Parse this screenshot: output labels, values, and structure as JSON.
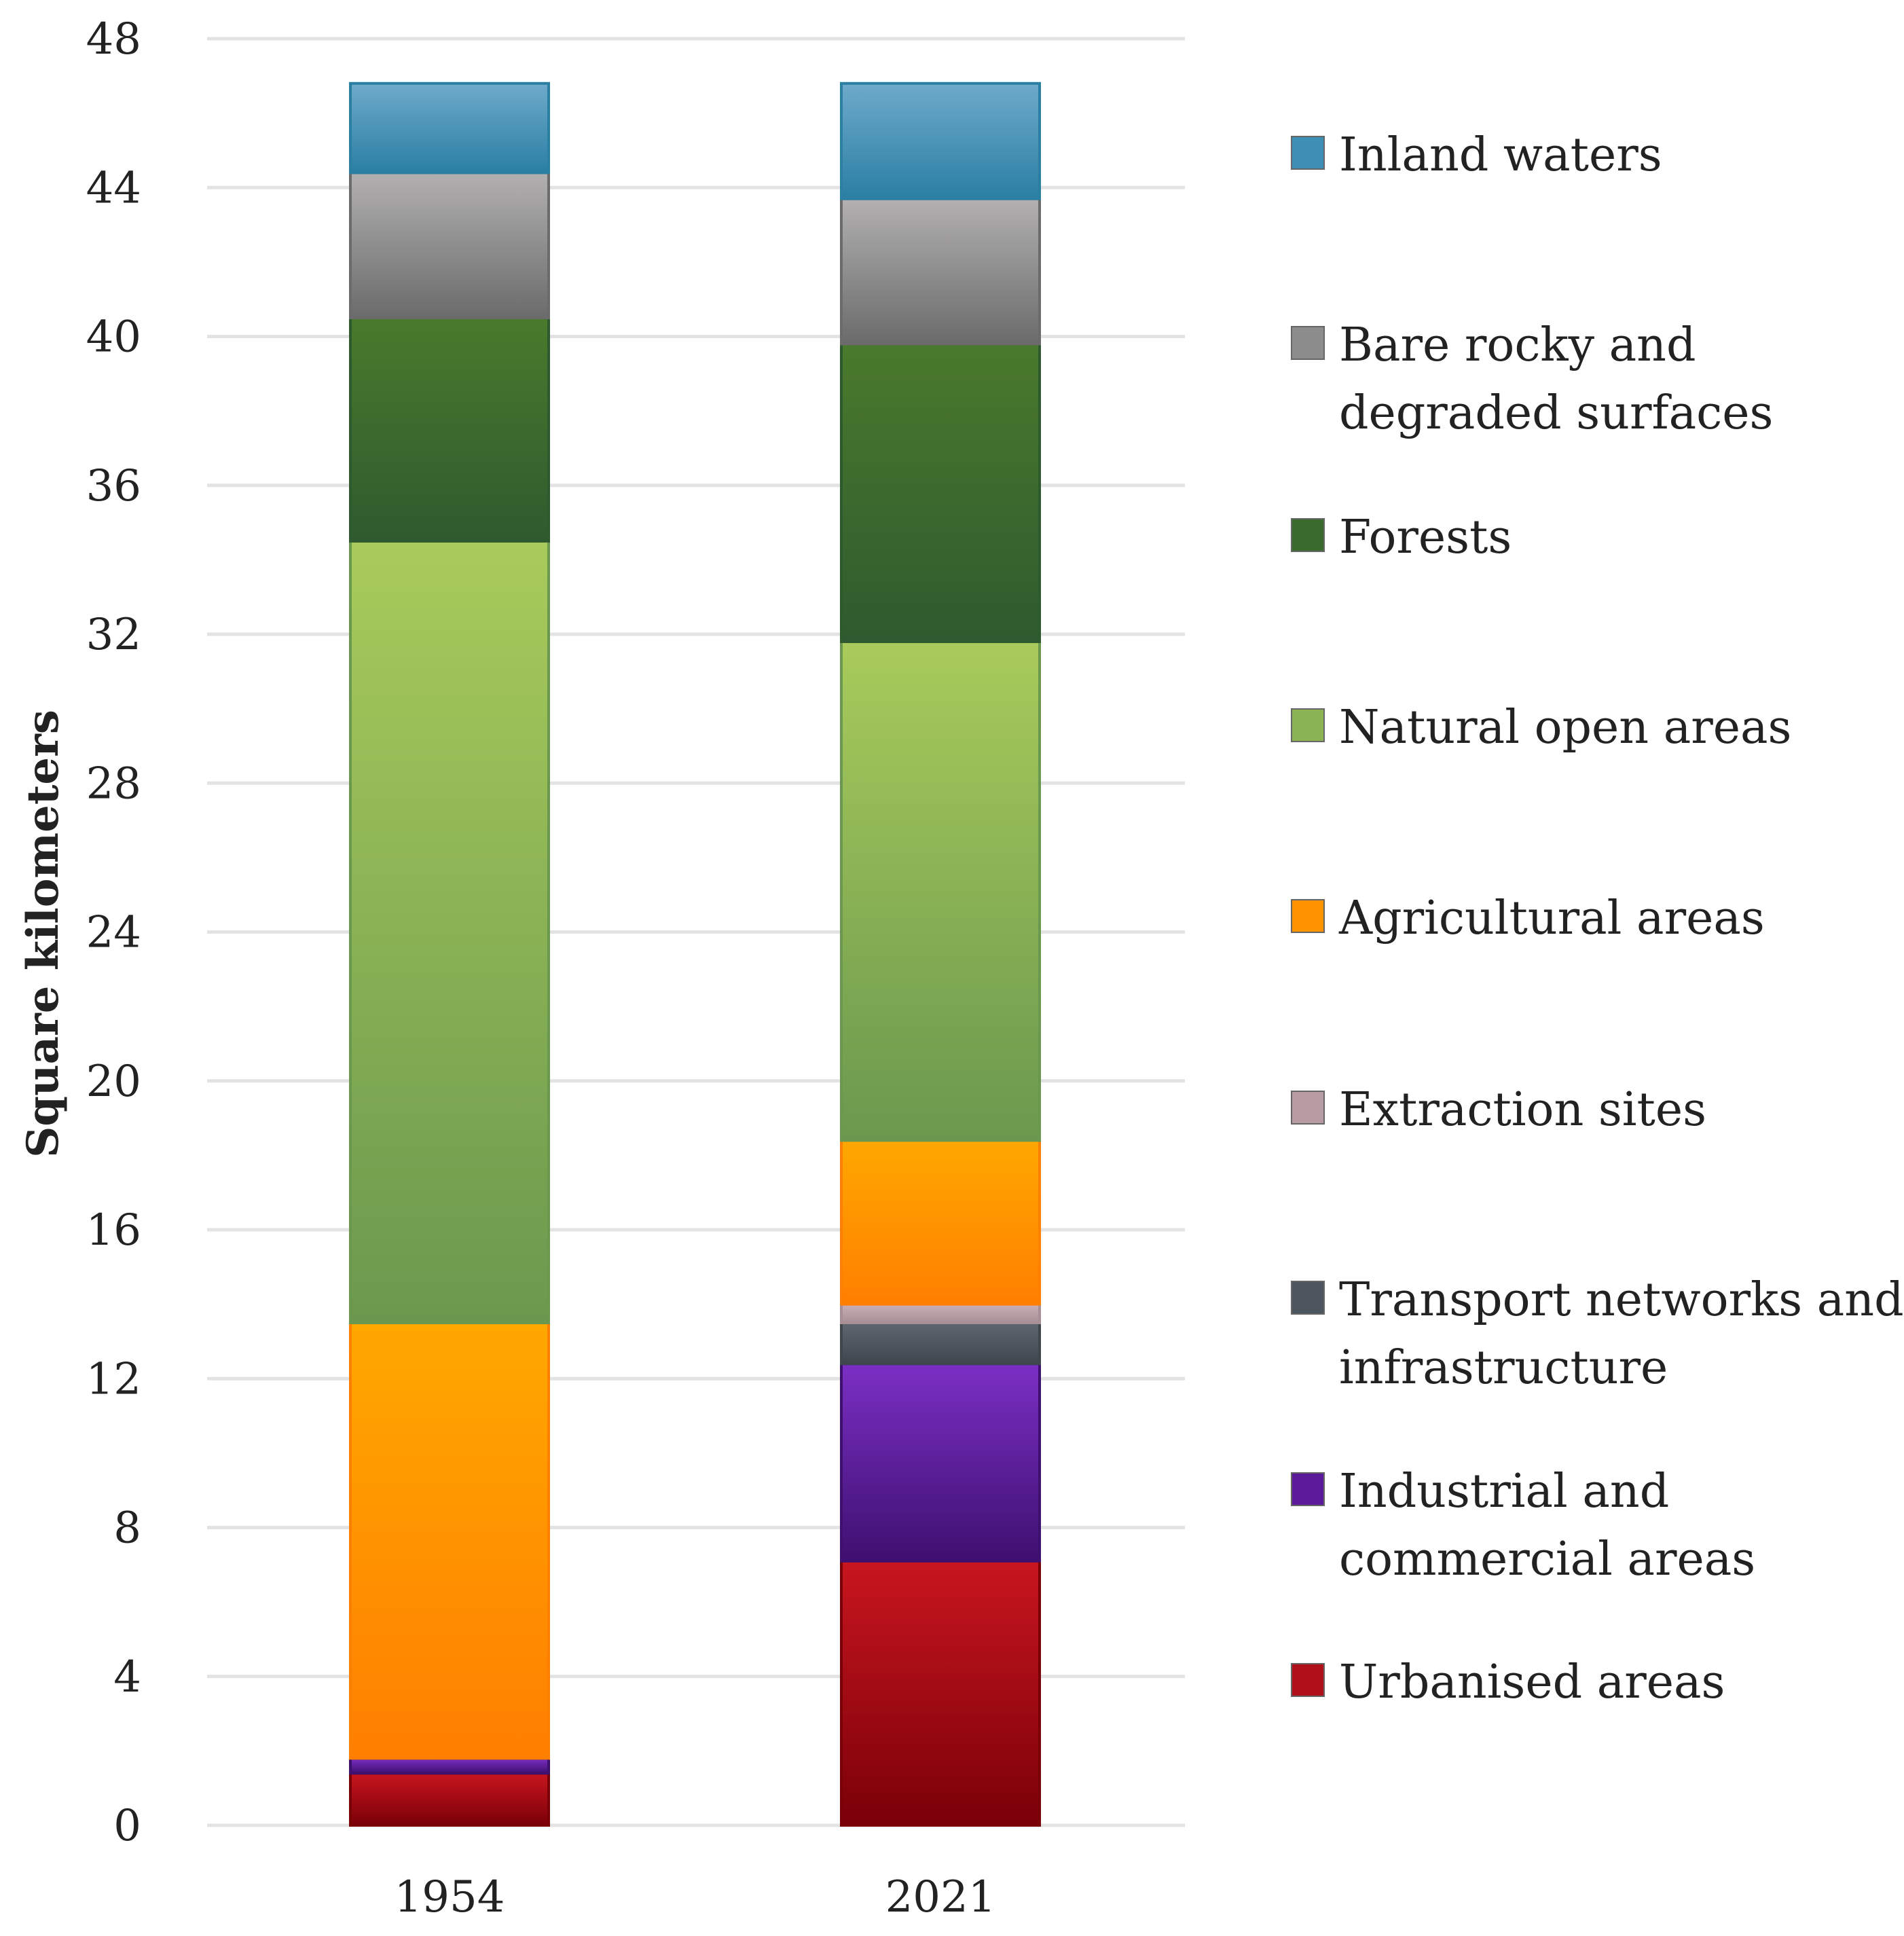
{
  "chart_data": {
    "type": "bar",
    "stacked": true,
    "title": "",
    "xlabel": "",
    "ylabel": "Square kilometers",
    "ylim": [
      0,
      48
    ],
    "yticks": [
      0,
      4,
      8,
      12,
      16,
      20,
      24,
      28,
      32,
      36,
      40,
      44,
      48
    ],
    "categories": [
      "1954",
      "2021"
    ],
    "grid": true,
    "legend_position": "right",
    "series": [
      {
        "name": "Urbanised areas",
        "values": [
          1.4,
          7.1
        ],
        "color_top": "#c8161f",
        "color_bottom": "#7a0008",
        "legend_color": "#b0101a"
      },
      {
        "name": "Industrial and commercial areas",
        "values": [
          0.4,
          5.3
        ],
        "color_top": "#7b2fc4",
        "color_bottom": "#3e1070",
        "legend_color": "#5a1a9a"
      },
      {
        "name": "Transport networks and infrastructure",
        "values": [
          0.0,
          1.1
        ],
        "color_top": "#5e6670",
        "color_bottom": "#3f464e",
        "legend_color": "#4d555e"
      },
      {
        "name": "Extraction sites",
        "values": [
          0.0,
          0.5
        ],
        "color_top": "#c9b0b6",
        "color_bottom": "#a88e95",
        "legend_color": "#b89ca3"
      },
      {
        "name": "Agricultural areas",
        "values": [
          11.7,
          4.4
        ],
        "color_top": "#ffa800",
        "color_bottom": "#ff7f00",
        "legend_color": "#ff9400"
      },
      {
        "name": "Natural open areas",
        "values": [
          21.0,
          13.4
        ],
        "color_top": "#a9cb5b",
        "color_bottom": "#6a984e",
        "legend_color": "#8ab454"
      },
      {
        "name": "Forests",
        "values": [
          6.0,
          8.0
        ],
        "color_top": "#4a7a2c",
        "color_bottom": "#2f5a2f",
        "legend_color": "#3a6a2e"
      },
      {
        "name": "Bare rocky and degraded surfaces",
        "values": [
          3.9,
          3.9
        ],
        "color_top": "#b2b0b0",
        "color_bottom": "#6c6b6b",
        "legend_color": "#8e8d8d"
      },
      {
        "name": "Inland waters",
        "values": [
          2.4,
          3.1
        ],
        "color_top": "#6eaacb",
        "color_bottom": "#2a7fa3",
        "legend_color": "#3d8fb5"
      }
    ],
    "legend": [
      {
        "lines": [
          "Inland waters"
        ],
        "color": "#3d8fb5"
      },
      {
        "lines": [
          "Bare rocky and",
          "degraded surfaces"
        ],
        "color": "#8e8d8d"
      },
      {
        "lines": [
          "Forests"
        ],
        "color": "#3a6a2e"
      },
      {
        "lines": [
          "Natural open areas"
        ],
        "color": "#8ab454"
      },
      {
        "lines": [
          "Agricultural areas"
        ],
        "color": "#ff9400"
      },
      {
        "lines": [
          "Extraction sites"
        ],
        "color": "#b89ca3"
      },
      {
        "lines": [
          "Transport networks and",
          "infrastructure"
        ],
        "color": "#4d555e"
      },
      {
        "lines": [
          "Industrial and",
          "commercial areas"
        ],
        "color": "#5a1a9a"
      },
      {
        "lines": [
          "Urbanised areas"
        ],
        "color": "#b0101a"
      }
    ]
  }
}
